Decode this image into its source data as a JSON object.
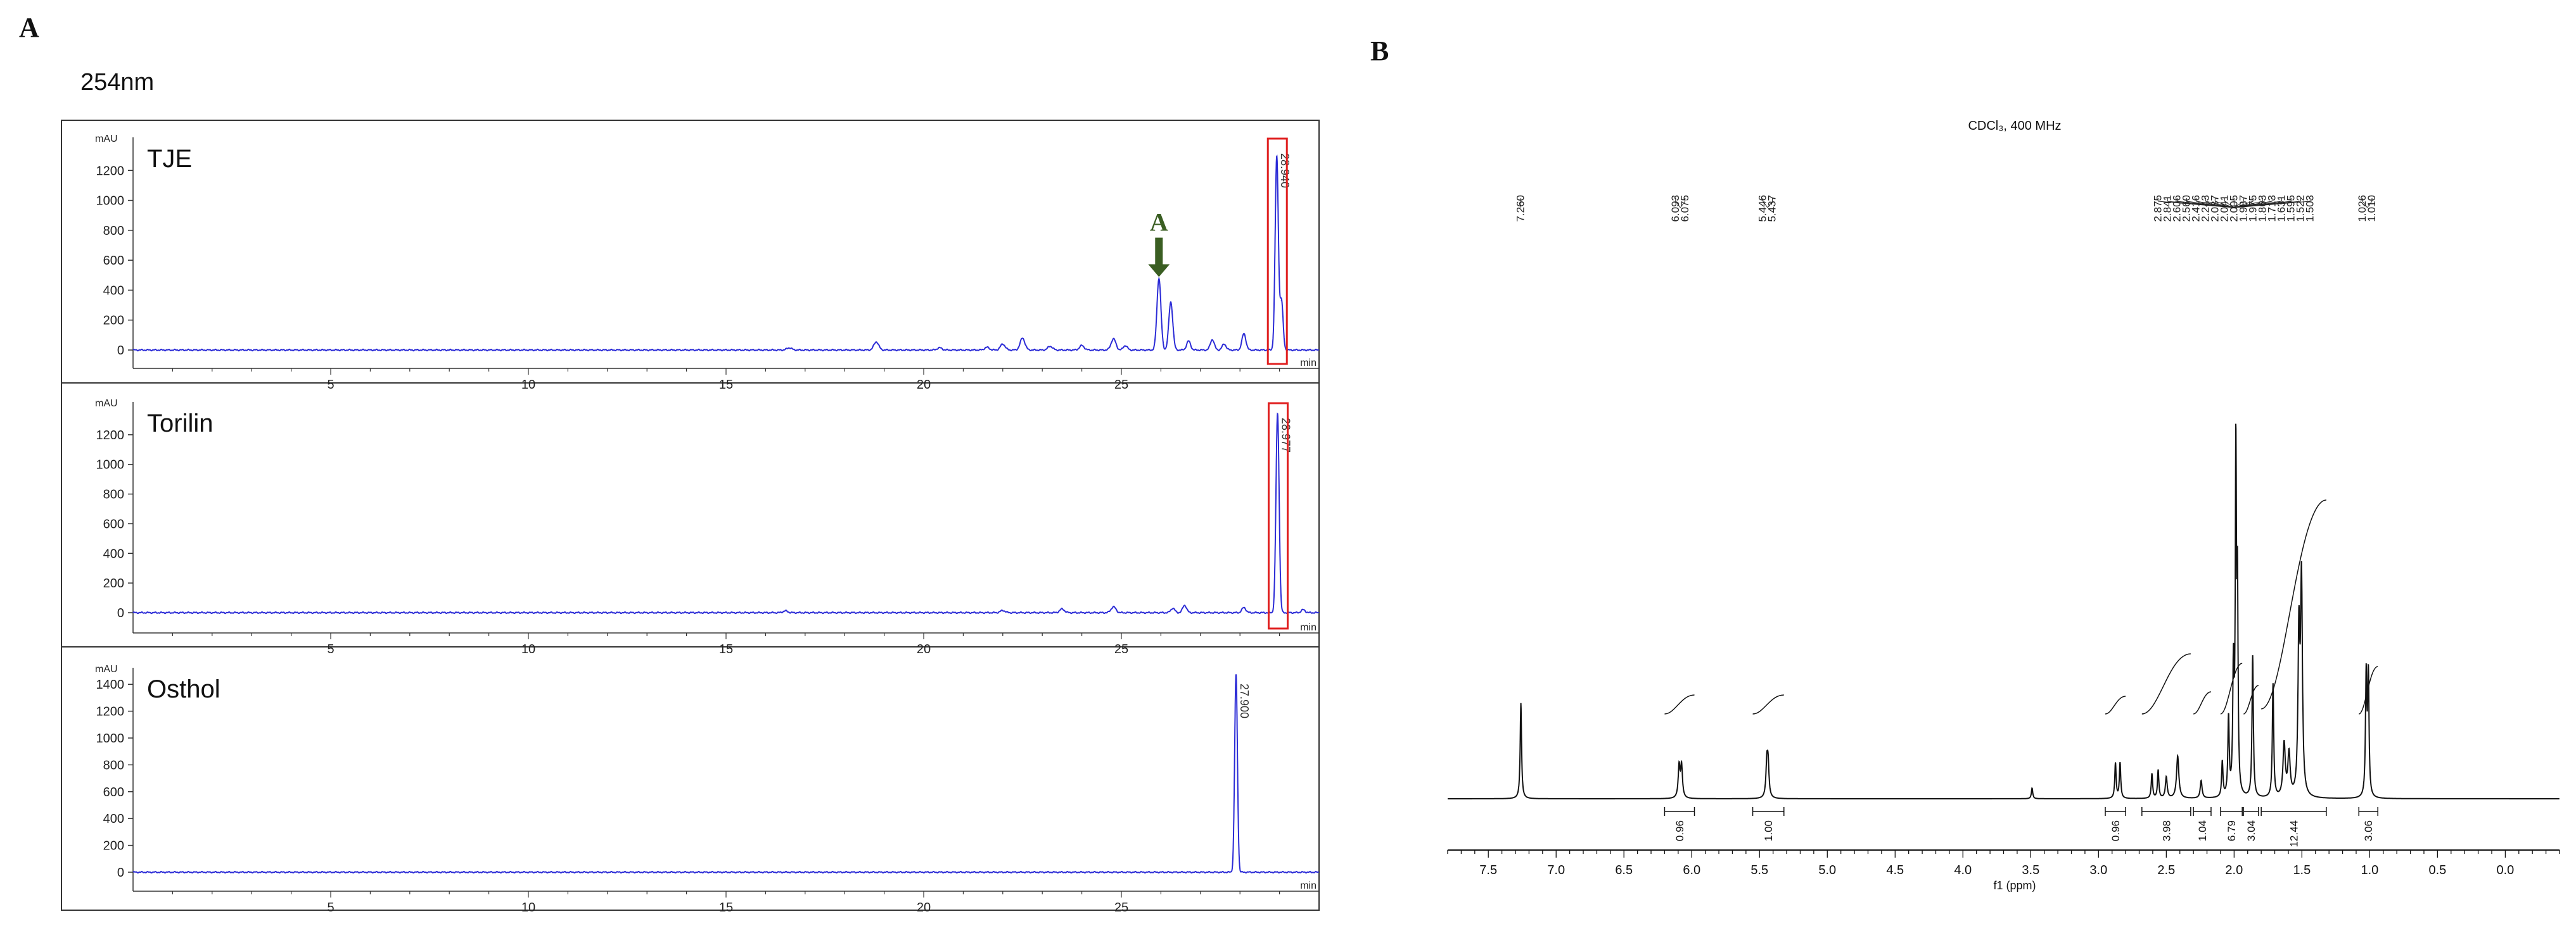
{
  "figure": {
    "panel_a_letter": "A",
    "panel_b_letter": "B",
    "wavelength_label": "254nm"
  },
  "chart_data": [
    {
      "type": "line",
      "panel": "A",
      "subtitle": "TJE",
      "ylabel": "mAU",
      "xlabel": "min",
      "xlim": [
        0,
        30
      ],
      "ylim": [
        -50,
        1400
      ],
      "x_ticks": [
        5,
        10,
        15,
        20,
        25
      ],
      "y_ticks": [
        0,
        200,
        400,
        600,
        800,
        1000,
        1200
      ],
      "line_color": "#2b2bd6",
      "baseline": 0,
      "peaks": [
        {
          "x": 16.6,
          "y": 15,
          "w": 0.06
        },
        {
          "x": 18.8,
          "y": 55,
          "w": 0.06
        },
        {
          "x": 20.4,
          "y": 15,
          "w": 0.06
        },
        {
          "x": 21.6,
          "y": 18,
          "w": 0.06
        },
        {
          "x": 22.0,
          "y": 40,
          "w": 0.06
        },
        {
          "x": 22.5,
          "y": 80,
          "w": 0.06
        },
        {
          "x": 23.2,
          "y": 25,
          "w": 0.06
        },
        {
          "x": 24.0,
          "y": 30,
          "w": 0.06
        },
        {
          "x": 24.8,
          "y": 75,
          "w": 0.06
        },
        {
          "x": 25.1,
          "y": 30,
          "w": 0.05
        },
        {
          "x": 25.95,
          "y": 480,
          "w": 0.05
        },
        {
          "x": 26.25,
          "y": 320,
          "w": 0.05
        },
        {
          "x": 26.7,
          "y": 60,
          "w": 0.05
        },
        {
          "x": 27.3,
          "y": 70,
          "w": 0.05
        },
        {
          "x": 27.6,
          "y": 40,
          "w": 0.05
        },
        {
          "x": 28.1,
          "y": 110,
          "w": 0.05
        },
        {
          "x": 28.93,
          "y": 1290,
          "w": 0.04
        },
        {
          "x": 29.05,
          "y": 330,
          "w": 0.04
        }
      ],
      "annotations": [
        {
          "text": "28.940",
          "x": 28.93,
          "boxed": true
        },
        {
          "text": "A",
          "x": 25.95,
          "arrow": true,
          "color": "#3a5e22"
        }
      ]
    },
    {
      "type": "line",
      "panel": "A",
      "subtitle": "Torilin",
      "ylabel": "mAU",
      "xlabel": "min",
      "xlim": [
        0,
        30
      ],
      "ylim": [
        -50,
        1400
      ],
      "x_ticks": [
        5,
        10,
        15,
        20,
        25
      ],
      "y_ticks": [
        0,
        200,
        400,
        600,
        800,
        1000,
        1200
      ],
      "line_color": "#2b2bd6",
      "baseline": 0,
      "peaks": [
        {
          "x": 16.5,
          "y": 12,
          "w": 0.06
        },
        {
          "x": 22.0,
          "y": 15,
          "w": 0.06
        },
        {
          "x": 23.5,
          "y": 25,
          "w": 0.06
        },
        {
          "x": 24.8,
          "y": 40,
          "w": 0.06
        },
        {
          "x": 26.3,
          "y": 30,
          "w": 0.05
        },
        {
          "x": 26.6,
          "y": 50,
          "w": 0.05
        },
        {
          "x": 28.1,
          "y": 35,
          "w": 0.05
        },
        {
          "x": 28.95,
          "y": 1340,
          "w": 0.04
        },
        {
          "x": 29.6,
          "y": 20,
          "w": 0.05
        }
      ],
      "annotations": [
        {
          "text": "28.977",
          "x": 28.95,
          "boxed": true
        }
      ]
    },
    {
      "type": "line",
      "panel": "A",
      "subtitle": "Osthol",
      "ylabel": "mAU",
      "xlabel": "min",
      "xlim": [
        0,
        30
      ],
      "ylim": [
        -50,
        1500
      ],
      "x_ticks": [
        5,
        10,
        15,
        20,
        25
      ],
      "y_ticks": [
        0,
        200,
        400,
        600,
        800,
        1000,
        1200,
        1400
      ],
      "line_color": "#2b2bd6",
      "baseline": 0,
      "peaks": [
        {
          "x": 27.9,
          "y": 1470,
          "w": 0.035
        }
      ],
      "annotations": [
        {
          "text": "27.900",
          "x": 27.9,
          "boxed": false
        }
      ]
    },
    {
      "type": "line",
      "panel": "B",
      "title": "CDCl₃, 400 MHz",
      "xlabel": "f1 (ppm)",
      "xlim": [
        7.8,
        -0.4
      ],
      "x_reversed": true,
      "x_ticks": [
        "7.5",
        "7.0",
        "6.5",
        "6.0",
        "5.5",
        "5.0",
        "4.5",
        "4.0",
        "3.5",
        "3.0",
        "2.5",
        "2.0",
        "1.5",
        "1.0",
        "0.5",
        "0.0"
      ],
      "line_color": "#111111",
      "peak_labels": [
        {
          "group": 1,
          "labels": [
            "7.260"
          ],
          "ppm": 7.26
        },
        {
          "group": 2,
          "labels": [
            "6.093",
            "6.075"
          ],
          "ppm": 6.084
        },
        {
          "group": 3,
          "labels": [
            "5.446",
            "5.437"
          ],
          "ppm": 5.44
        },
        {
          "group": 4,
          "labels": [
            "2.875",
            "2.841",
            "2.606",
            "2.560",
            "2.416",
            "2.243",
            "2.087",
            "2.041",
            "2.005",
            "1.987",
            "1.975",
            "1.863",
            "1.713",
            "1.631",
            "1.595",
            "1.522",
            "1.503"
          ],
          "ppm": 2.0
        },
        {
          "group": 5,
          "labels": [
            "1.026",
            "1.010"
          ],
          "ppm": 1.018
        }
      ],
      "integrals": [
        {
          "value": "0.96",
          "from": 6.2,
          "to": 5.98
        },
        {
          "value": "1.00",
          "from": 5.55,
          "to": 5.32
        },
        {
          "value": "0.96",
          "from": 2.95,
          "to": 2.8
        },
        {
          "value": "3.98",
          "from": 2.68,
          "to": 2.32
        },
        {
          "value": "1.04",
          "from": 2.3,
          "to": 2.17
        },
        {
          "value": "6.79",
          "from": 2.1,
          "to": 1.94
        },
        {
          "value": "3.04",
          "from": 1.93,
          "to": 1.82
        },
        {
          "value": "12.44",
          "from": 1.8,
          "to": 1.32
        },
        {
          "value": "3.06",
          "from": 1.08,
          "to": 0.94
        }
      ],
      "signals": [
        {
          "ppm": 7.26,
          "h": 0.27,
          "w": 0.006
        },
        {
          "ppm": 6.093,
          "h": 0.09,
          "w": 0.008
        },
        {
          "ppm": 6.075,
          "h": 0.09,
          "w": 0.008
        },
        {
          "ppm": 5.446,
          "h": 0.09,
          "w": 0.008
        },
        {
          "ppm": 5.437,
          "h": 0.09,
          "w": 0.008
        },
        {
          "ppm": 3.49,
          "h": 0.03,
          "w": 0.006
        },
        {
          "ppm": 2.875,
          "h": 0.1,
          "w": 0.006
        },
        {
          "ppm": 2.841,
          "h": 0.1,
          "w": 0.006
        },
        {
          "ppm": 2.606,
          "h": 0.07,
          "w": 0.006
        },
        {
          "ppm": 2.56,
          "h": 0.08,
          "w": 0.006
        },
        {
          "ppm": 2.5,
          "h": 0.06,
          "w": 0.008
        },
        {
          "ppm": 2.416,
          "h": 0.12,
          "w": 0.01
        },
        {
          "ppm": 2.243,
          "h": 0.05,
          "w": 0.008
        },
        {
          "ppm": 2.087,
          "h": 0.1,
          "w": 0.006
        },
        {
          "ppm": 2.041,
          "h": 0.22,
          "w": 0.006
        },
        {
          "ppm": 2.005,
          "h": 0.35,
          "w": 0.006
        },
        {
          "ppm": 1.987,
          "h": 0.95,
          "w": 0.005
        },
        {
          "ppm": 1.975,
          "h": 0.55,
          "w": 0.005
        },
        {
          "ppm": 1.863,
          "h": 0.4,
          "w": 0.006
        },
        {
          "ppm": 1.713,
          "h": 0.32,
          "w": 0.006
        },
        {
          "ppm": 1.631,
          "h": 0.15,
          "w": 0.01
        },
        {
          "ppm": 1.595,
          "h": 0.12,
          "w": 0.01
        },
        {
          "ppm": 1.522,
          "h": 0.45,
          "w": 0.008
        },
        {
          "ppm": 1.503,
          "h": 0.6,
          "w": 0.008
        },
        {
          "ppm": 1.026,
          "h": 0.34,
          "w": 0.006
        },
        {
          "ppm": 1.01,
          "h": 0.34,
          "w": 0.006
        }
      ]
    }
  ]
}
